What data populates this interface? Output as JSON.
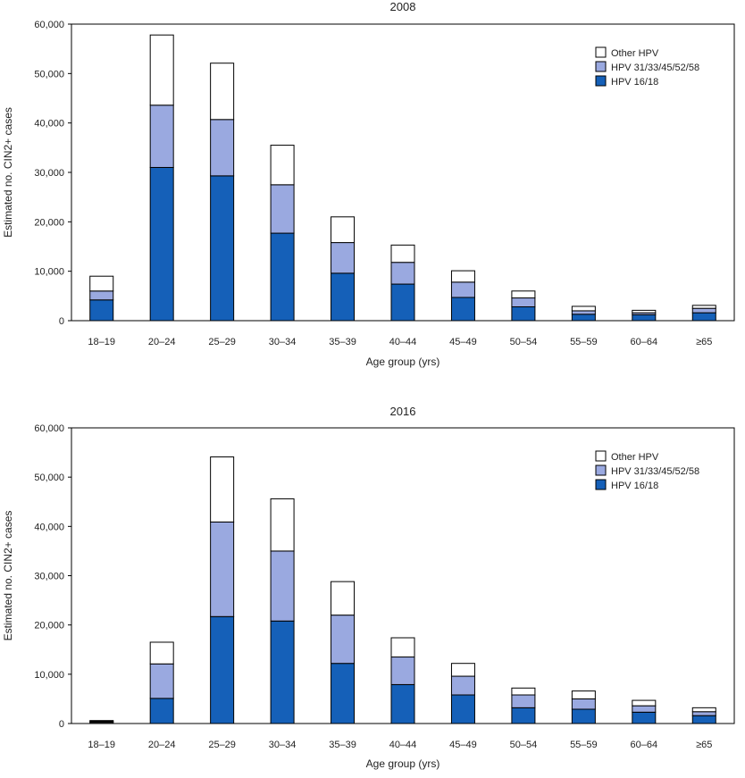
{
  "colors": {
    "hpv1618": "#1560b8",
    "hpv3133": "#9aa9e0",
    "other": "#ffffff",
    "outline": "#000000",
    "small_bar": "#333333"
  },
  "chart_data": [
    {
      "type": "bar",
      "stacked": true,
      "title": "2008",
      "xlabel": "Age group (yrs)",
      "ylabel": "Estimated no. CIN2+ cases",
      "ylim": [
        0,
        60000
      ],
      "yticks": [
        "0",
        "10,000",
        "20,000",
        "30,000",
        "40,000",
        "50,000",
        "60,000"
      ],
      "categories": [
        "18–19",
        "20–24",
        "25–29",
        "30–34",
        "35–39",
        "40–44",
        "45–49",
        "50–54",
        "55–59",
        "60–64",
        "≥65"
      ],
      "legend_placement": "top-right",
      "series": [
        {
          "name": "HPV 16/18",
          "key": "hpv1618",
          "values": [
            4200,
            31000,
            29300,
            17700,
            9600,
            7400,
            4700,
            2800,
            1300,
            1200,
            1600
          ]
        },
        {
          "name": "HPV 31/33/45/52/58",
          "key": "hpv3133",
          "values": [
            1800,
            12600,
            11400,
            9800,
            6200,
            4400,
            3100,
            1800,
            700,
            400,
            900
          ]
        },
        {
          "name": "Other HPV",
          "key": "other",
          "values": [
            3000,
            14200,
            11400,
            8000,
            5200,
            3500,
            2300,
            1400,
            900,
            500,
            600
          ]
        }
      ]
    },
    {
      "type": "bar",
      "stacked": true,
      "title": "2016",
      "xlabel": "Age group (yrs)",
      "ylabel": "Estimated no. CIN2+ cases",
      "ylim": [
        0,
        60000
      ],
      "yticks": [
        "0",
        "10,000",
        "20,000",
        "30,000",
        "40,000",
        "50,000",
        "60,000"
      ],
      "categories": [
        "18–19",
        "20–24",
        "25–29",
        "30–34",
        "35–39",
        "40–44",
        "45–49",
        "50–54",
        "55–59",
        "60–64",
        "≥65"
      ],
      "legend_placement": "top-right",
      "series": [
        {
          "name": "HPV 16/18",
          "key": "hpv1618",
          "values": [
            300,
            5100,
            21700,
            20800,
            12200,
            7900,
            5800,
            3200,
            2900,
            2300,
            1600
          ]
        },
        {
          "name": "HPV 31/33/45/52/58",
          "key": "hpv3133",
          "values": [
            200,
            7000,
            19200,
            14200,
            9800,
            5600,
            3800,
            2600,
            2100,
            1300,
            800
          ]
        },
        {
          "name": "Other HPV",
          "key": "other",
          "values": [
            100,
            4400,
            13200,
            10600,
            6800,
            3900,
            2600,
            1400,
            1600,
            1100,
            800
          ]
        }
      ]
    }
  ]
}
